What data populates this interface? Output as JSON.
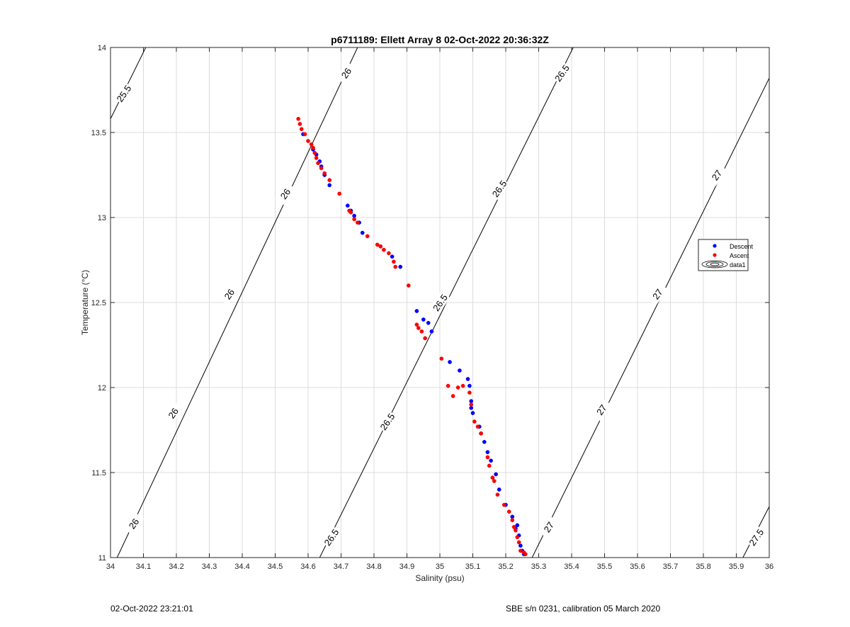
{
  "chart_data": {
    "type": "scatter",
    "title": "p6711189: Ellett Array 8 02-Oct-2022 20:36:32Z",
    "xlabel": "Salinity (psu)",
    "ylabel": "Temperature (°C)",
    "xlim": [
      34,
      36
    ],
    "ylim": [
      11,
      14
    ],
    "xticks": [
      34,
      34.1,
      34.2,
      34.3,
      34.4,
      34.5,
      34.6,
      34.7,
      34.8,
      34.9,
      35,
      35.1,
      35.2,
      35.3,
      35.4,
      35.5,
      35.6,
      35.7,
      35.8,
      35.9,
      36
    ],
    "xtick_labels": [
      "34",
      "34.1",
      "34.2",
      "34.3",
      "34.4",
      "34.5",
      "34.6",
      "34.7",
      "34.8",
      "34.9",
      "35",
      "35.1",
      "35.2",
      "35.3",
      "35.4",
      "35.5",
      "35.6",
      "35.7",
      "35.8",
      "35.9",
      "36"
    ],
    "yticks": [
      11,
      11.5,
      12,
      12.5,
      13,
      13.5,
      14
    ],
    "ytick_labels": [
      "11",
      "11.5",
      "12",
      "12.5",
      "13",
      "13.5",
      "14"
    ],
    "grid": true,
    "legend_position": "right",
    "series": [
      {
        "name": "Descent",
        "color": "#0000ff",
        "marker": "dot",
        "points": [
          [
            34.585,
            13.49
          ],
          [
            34.615,
            13.4
          ],
          [
            34.625,
            13.37
          ],
          [
            34.635,
            13.33
          ],
          [
            34.64,
            13.3
          ],
          [
            34.65,
            13.25
          ],
          [
            34.665,
            13.19
          ],
          [
            34.72,
            13.07
          ],
          [
            34.73,
            13.04
          ],
          [
            34.74,
            13.01
          ],
          [
            34.755,
            12.97
          ],
          [
            34.765,
            12.91
          ],
          [
            34.82,
            12.83
          ],
          [
            34.855,
            12.77
          ],
          [
            34.88,
            12.71
          ],
          [
            34.93,
            12.45
          ],
          [
            34.95,
            12.4
          ],
          [
            34.965,
            12.38
          ],
          [
            34.975,
            12.33
          ],
          [
            35.03,
            12.15
          ],
          [
            35.06,
            12.1
          ],
          [
            35.085,
            12.05
          ],
          [
            35.09,
            12.01
          ],
          [
            35.095,
            11.92
          ],
          [
            35.095,
            11.88
          ],
          [
            35.1,
            11.85
          ],
          [
            35.12,
            11.77
          ],
          [
            35.125,
            11.73
          ],
          [
            35.135,
            11.68
          ],
          [
            35.145,
            11.62
          ],
          [
            35.155,
            11.57
          ],
          [
            35.16,
            11.47
          ],
          [
            35.17,
            11.49
          ],
          [
            35.18,
            11.4
          ],
          [
            35.2,
            11.31
          ],
          [
            35.22,
            11.24
          ],
          [
            35.23,
            11.17
          ],
          [
            35.235,
            11.19
          ],
          [
            35.24,
            11.13
          ],
          [
            35.245,
            11.07
          ],
          [
            35.25,
            11.04
          ],
          [
            35.255,
            11.02
          ]
        ]
      },
      {
        "name": "Ascent",
        "color": "#ff0000",
        "marker": "dot",
        "points": [
          [
            34.57,
            13.58
          ],
          [
            34.575,
            13.55
          ],
          [
            34.58,
            13.52
          ],
          [
            34.59,
            13.49
          ],
          [
            34.6,
            13.45
          ],
          [
            34.61,
            13.43
          ],
          [
            34.615,
            13.41
          ],
          [
            34.62,
            13.38
          ],
          [
            34.625,
            13.35
          ],
          [
            34.63,
            13.32
          ],
          [
            34.64,
            13.29
          ],
          [
            34.65,
            13.26
          ],
          [
            34.665,
            13.22
          ],
          [
            34.695,
            13.14
          ],
          [
            34.725,
            13.04
          ],
          [
            34.73,
            13.03
          ],
          [
            34.74,
            12.99
          ],
          [
            34.75,
            12.97
          ],
          [
            34.78,
            12.89
          ],
          [
            34.81,
            12.84
          ],
          [
            34.82,
            12.83
          ],
          [
            34.83,
            12.81
          ],
          [
            34.845,
            12.79
          ],
          [
            34.86,
            12.74
          ],
          [
            34.865,
            12.71
          ],
          [
            34.905,
            12.6
          ],
          [
            34.93,
            12.37
          ],
          [
            34.935,
            12.35
          ],
          [
            34.945,
            12.33
          ],
          [
            34.955,
            12.29
          ],
          [
            35.005,
            12.17
          ],
          [
            35.025,
            12.01
          ],
          [
            35.04,
            11.95
          ],
          [
            35.055,
            12.0
          ],
          [
            35.07,
            12.01
          ],
          [
            35.09,
            11.97
          ],
          [
            35.095,
            11.9
          ],
          [
            35.105,
            11.8
          ],
          [
            35.115,
            11.77
          ],
          [
            35.125,
            11.73
          ],
          [
            35.145,
            11.59
          ],
          [
            35.15,
            11.54
          ],
          [
            35.16,
            11.47
          ],
          [
            35.165,
            11.45
          ],
          [
            35.175,
            11.37
          ],
          [
            35.195,
            11.31
          ],
          [
            35.21,
            11.27
          ],
          [
            35.22,
            11.22
          ],
          [
            35.225,
            11.18
          ],
          [
            35.23,
            11.16
          ],
          [
            35.235,
            11.12
          ],
          [
            35.24,
            11.09
          ],
          [
            35.245,
            11.04
          ],
          [
            35.255,
            11.03
          ],
          [
            35.26,
            11.02
          ]
        ]
      }
    ],
    "density_contours": [
      {
        "level": "25.5",
        "points": [
          [
            34,
            13.58
          ],
          [
            34.107,
            14.0
          ]
        ]
      },
      {
        "level": "26",
        "points": [
          [
            34.02,
            11.0
          ],
          [
            34.75,
            14.0
          ]
        ]
      },
      {
        "level": "26.5",
        "points": [
          [
            34.635,
            11.0
          ],
          [
            35.405,
            14.0
          ]
        ]
      },
      {
        "level": "27",
        "points": [
          [
            35.28,
            11.0
          ],
          [
            36,
            13.82
          ]
        ]
      },
      {
        "level": "27.5",
        "points": [
          [
            35.92,
            11.0
          ],
          [
            36,
            11.3
          ]
        ]
      }
    ],
    "contour_labels": [
      {
        "text": "25.5",
        "s": 34.04,
        "t": 13.73
      },
      {
        "text": "26",
        "s": 34.07,
        "t": 11.2
      },
      {
        "text": "26",
        "s": 34.19,
        "t": 11.85
      },
      {
        "text": "26",
        "s": 34.36,
        "t": 12.55
      },
      {
        "text": "26",
        "s": 34.53,
        "t": 13.14
      },
      {
        "text": "26",
        "s": 34.715,
        "t": 13.85
      },
      {
        "text": "26.5",
        "s": 34.67,
        "t": 11.12
      },
      {
        "text": "26.5",
        "s": 34.84,
        "t": 11.8
      },
      {
        "text": "26.5",
        "s": 35.0,
        "t": 12.5
      },
      {
        "text": "26.5",
        "s": 35.18,
        "t": 13.17
      },
      {
        "text": "26.5",
        "s": 35.37,
        "t": 13.85
      },
      {
        "text": "27",
        "s": 35.33,
        "t": 11.18
      },
      {
        "text": "27",
        "s": 35.49,
        "t": 11.87
      },
      {
        "text": "27",
        "s": 35.66,
        "t": 12.55
      },
      {
        "text": "27",
        "s": 35.84,
        "t": 13.25
      },
      {
        "text": "27.5",
        "s": 35.96,
        "t": 11.12
      }
    ]
  },
  "legend": {
    "items": [
      {
        "label": "Descent",
        "color": "#0000ff",
        "symbol": "dot"
      },
      {
        "label": "Ascent",
        "color": "#ff0000",
        "symbol": "dot"
      },
      {
        "label": "data1",
        "color": "#000000",
        "symbol": "contour-icon"
      }
    ]
  },
  "footer": {
    "left": "02-Oct-2022 23:21:01",
    "right": "SBE s/n 0231, calibration 05 March 2020"
  }
}
